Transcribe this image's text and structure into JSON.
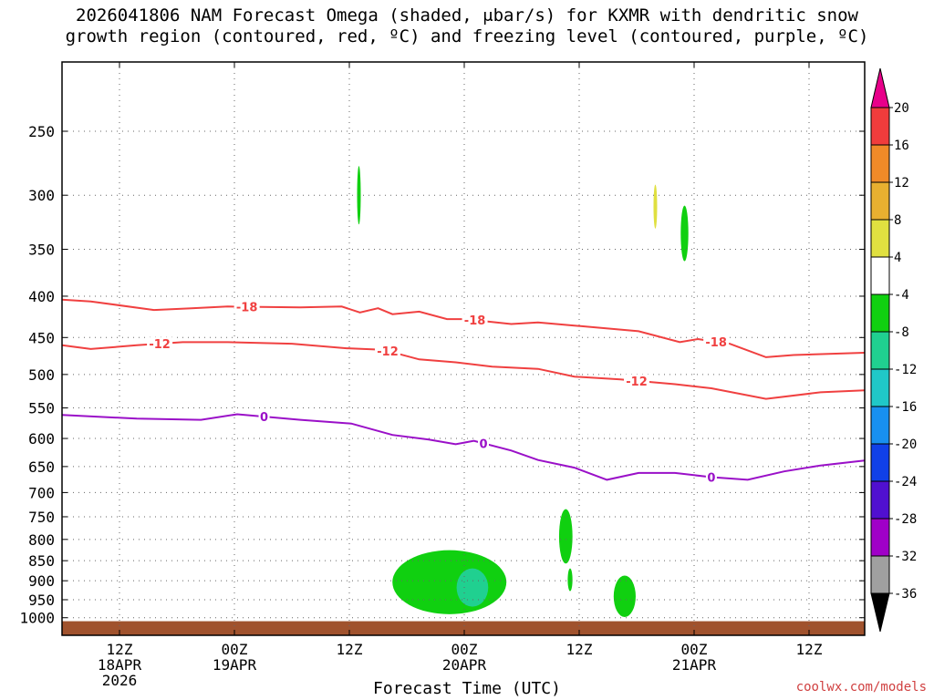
{
  "title": {
    "line1": "2026041806 NAM Forecast Omega (shaded, μbar/s) for KXMR with dendritic snow",
    "line2": "growth region (contoured, red, ºC) and freezing level (contoured, purple, ºC)"
  },
  "footer": {
    "xlabel": "Forecast Time (UTC)",
    "site": "coolwx.com/models"
  },
  "chart_data": {
    "type": "heatmap",
    "x_unit": "forecast hour from 2026041806",
    "xlim": [
      0,
      84
    ],
    "ylim": [
      1020,
      200
    ],
    "y_scale": "log",
    "grid": true,
    "y_ticks": [
      250,
      300,
      350,
      400,
      450,
      500,
      550,
      600,
      650,
      700,
      750,
      800,
      850,
      900,
      950,
      1000
    ],
    "x_ticks": [
      {
        "hour": 6,
        "lines": [
          "12Z",
          "18APR",
          "2026"
        ]
      },
      {
        "hour": 18,
        "lines": [
          "00Z",
          "19APR"
        ]
      },
      {
        "hour": 30,
        "lines": [
          "12Z"
        ]
      },
      {
        "hour": 42,
        "lines": [
          "00Z",
          "20APR"
        ]
      },
      {
        "hour": 54,
        "lines": [
          "12Z"
        ]
      },
      {
        "hour": 66,
        "lines": [
          "00Z",
          "21APR"
        ]
      },
      {
        "hour": 78,
        "lines": [
          "12Z"
        ]
      }
    ],
    "colorbar": {
      "labels": [
        "20",
        "16",
        "12",
        "8",
        "4",
        "-4",
        "-8",
        "-12",
        "-16",
        "-20",
        "-24",
        "-28",
        "-32",
        "-36"
      ],
      "over_color": "#e8008a",
      "under_color": "#000000",
      "bins": [
        {
          "range": [
            16,
            20
          ],
          "color": "#f03c3c"
        },
        {
          "range": [
            12,
            16
          ],
          "color": "#f08a28"
        },
        {
          "range": [
            8,
            12
          ],
          "color": "#e8b030"
        },
        {
          "range": [
            4,
            8
          ],
          "color": "#e0e040"
        },
        {
          "range": [
            -4,
            4
          ],
          "color": "#ffffff"
        },
        {
          "range": [
            -8,
            -4
          ],
          "color": "#10d010"
        },
        {
          "range": [
            -12,
            -8
          ],
          "color": "#20d090"
        },
        {
          "range": [
            -16,
            -12
          ],
          "color": "#20c8c8"
        },
        {
          "range": [
            -20,
            -16
          ],
          "color": "#1890f0"
        },
        {
          "range": [
            -24,
            -20
          ],
          "color": "#1040e8"
        },
        {
          "range": [
            -28,
            -24
          ],
          "color": "#5010d0"
        },
        {
          "range": [
            -32,
            -28
          ],
          "color": "#a000c8"
        },
        {
          "range": [
            -36,
            -32
          ],
          "color": "#a0a0a0"
        }
      ]
    },
    "omega_regions": [
      {
        "value_bin": [
          -8,
          -4
        ],
        "color": "#10d010",
        "hours": [
          30.9,
          31.1
        ],
        "pressure": [
          276,
          326
        ]
      },
      {
        "value_bin": [
          4,
          8
        ],
        "color": "#e0e040",
        "hours": [
          61.8,
          62.1
        ],
        "pressure": [
          291,
          330
        ]
      },
      {
        "value_bin": [
          -8,
          -4
        ],
        "color": "#10d010",
        "hours": [
          64.6,
          65.4
        ],
        "pressure": [
          309,
          362
        ]
      },
      {
        "value_bin": [
          -8,
          -4
        ],
        "color": "#10d010",
        "hours": [
          34.5,
          46.4
        ],
        "pressure": [
          825,
          990
        ]
      },
      {
        "value_bin": [
          -12,
          -8
        ],
        "color": "#20d090",
        "hours": [
          41.2,
          44.5
        ],
        "pressure": [
          869,
          969
        ]
      },
      {
        "value_bin": [
          -8,
          -4
        ],
        "color": "#10d010",
        "hours": [
          51.9,
          53.3
        ],
        "pressure": [
          734,
          857
        ]
      },
      {
        "value_bin": [
          -8,
          -4
        ],
        "color": "#10d010",
        "hours": [
          52.8,
          53.3
        ],
        "pressure": [
          869,
          927
        ]
      },
      {
        "value_bin": [
          -8,
          -4
        ],
        "color": "#10d010",
        "hours": [
          57.6,
          59.9
        ],
        "pressure": [
          887,
          998
        ]
      }
    ],
    "ground_pressure": 1010,
    "ground_color": "#a0522d",
    "contours": [
      {
        "name": "-18",
        "label": "-18",
        "color": "#f04040",
        "label_hours": [
          19.3,
          43.1,
          68.3
        ],
        "points": [
          [
            0,
            404
          ],
          [
            3,
            406
          ],
          [
            9.6,
            416
          ],
          [
            13.5,
            414
          ],
          [
            17.3,
            412
          ],
          [
            24.9,
            413
          ],
          [
            29.2,
            412
          ],
          [
            31.1,
            419
          ],
          [
            33.0,
            414
          ],
          [
            34.5,
            421
          ],
          [
            37.3,
            418
          ],
          [
            40.2,
            427
          ],
          [
            42.1,
            427
          ],
          [
            46.9,
            433
          ],
          [
            49.7,
            431
          ],
          [
            53.5,
            435
          ],
          [
            60.2,
            442
          ],
          [
            64.5,
            456
          ],
          [
            66.4,
            452
          ],
          [
            69.7,
            458
          ],
          [
            73.5,
            476
          ],
          [
            76.4,
            473
          ],
          [
            83.8,
            470
          ]
        ]
      },
      {
        "name": "-12",
        "label": "-12",
        "color": "#f04040",
        "label_hours": [
          10.2,
          34.0,
          60.0
        ],
        "points": [
          [
            0,
            460
          ],
          [
            3,
            465
          ],
          [
            7.8,
            460
          ],
          [
            12.6,
            456
          ],
          [
            17.3,
            456
          ],
          [
            24.0,
            458
          ],
          [
            29.7,
            464
          ],
          [
            33.5,
            466
          ],
          [
            37.3,
            479
          ],
          [
            41.1,
            483
          ],
          [
            44.9,
            489
          ],
          [
            49.7,
            492
          ],
          [
            53.5,
            503
          ],
          [
            58.3,
            507
          ],
          [
            64.0,
            514
          ],
          [
            67.8,
            520
          ],
          [
            73.5,
            536
          ],
          [
            79.2,
            526
          ],
          [
            83.8,
            523
          ]
        ]
      },
      {
        "name": "0",
        "label": "0",
        "color": "#9a10c8",
        "label_hours": [
          21.1,
          44.0,
          67.8
        ],
        "points": [
          [
            0,
            561
          ],
          [
            7.8,
            567
          ],
          [
            14.5,
            569
          ],
          [
            18.3,
            560
          ],
          [
            24.9,
            569
          ],
          [
            30.2,
            575
          ],
          [
            34.5,
            594
          ],
          [
            38.3,
            602
          ],
          [
            41.1,
            610
          ],
          [
            43.0,
            604
          ],
          [
            46.9,
            621
          ],
          [
            49.7,
            638
          ],
          [
            53.5,
            652
          ],
          [
            56.9,
            675
          ],
          [
            60.2,
            662
          ],
          [
            64.0,
            662
          ],
          [
            67.8,
            670
          ],
          [
            71.6,
            675
          ],
          [
            75.4,
            659
          ],
          [
            79.2,
            648
          ],
          [
            83.8,
            639
          ]
        ]
      }
    ]
  }
}
